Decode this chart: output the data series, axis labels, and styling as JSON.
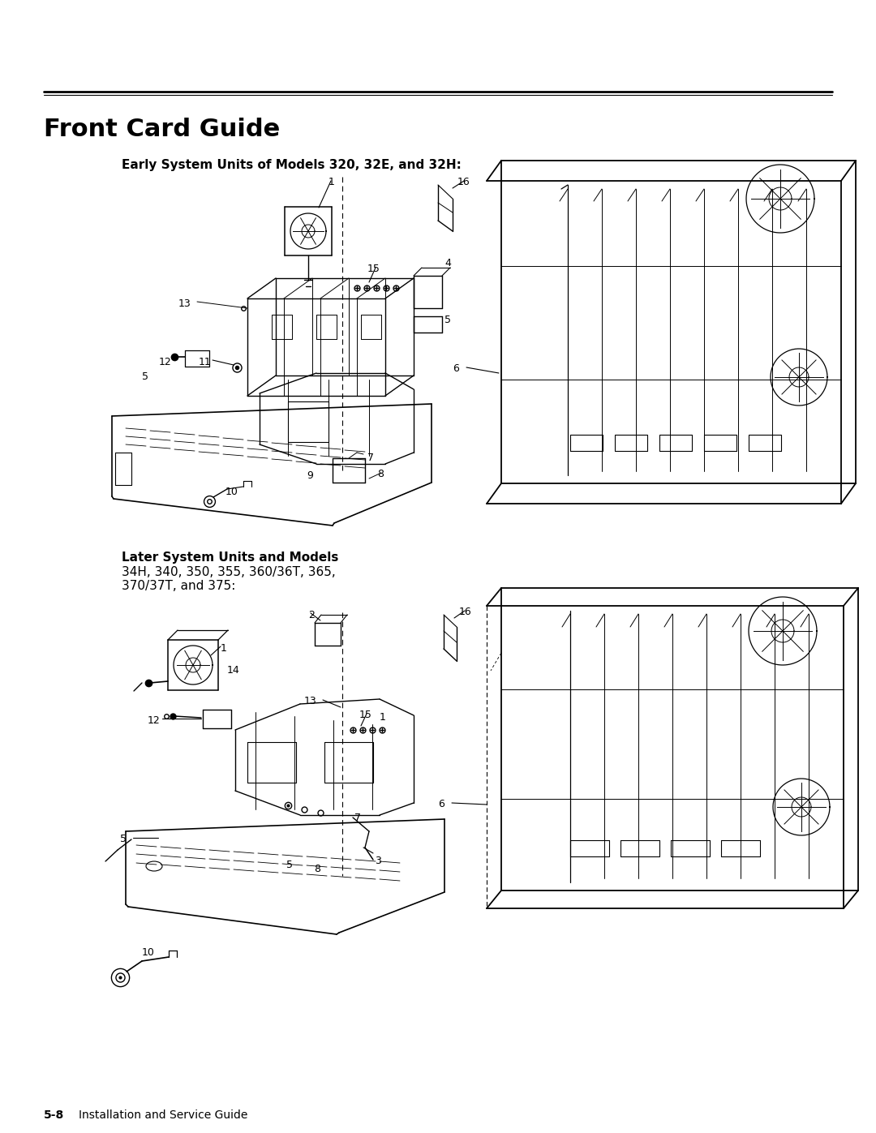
{
  "page_title": "Front Card Guide",
  "top_label": "Early System Units of Models 320, 32E, and 32H:",
  "bottom_label_line1": "Later System Units and Models",
  "bottom_label_line2": "34H, 340, 350, 355, 360/36T, 365,",
  "bottom_label_line3": "370/37T, and 375:",
  "footer_page": "5-8",
  "footer_text": "Installation and Service Guide",
  "bg_color": "#ffffff",
  "fig_width": 10.8,
  "fig_height": 13.97
}
